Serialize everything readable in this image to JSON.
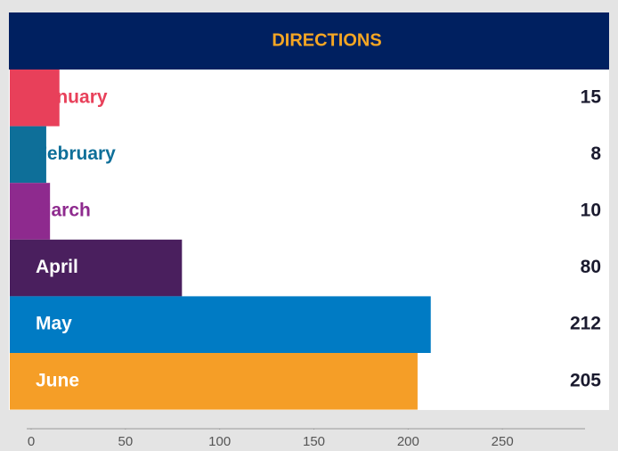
{
  "chart_data": {
    "type": "bar",
    "orientation": "horizontal",
    "title": "DIRECTIONS",
    "categories": [
      "January",
      "February",
      "March",
      "April",
      "May",
      "June"
    ],
    "values": [
      15,
      8,
      10,
      80,
      212,
      205
    ],
    "colors": [
      "#e8405a",
      "#0e6f99",
      "#8e2a8e",
      "#4a1f5e",
      "#007bc4",
      "#f59e27"
    ],
    "xlim": [
      0,
      300
    ],
    "xticks": [
      0,
      50,
      100,
      150,
      200,
      250
    ]
  }
}
